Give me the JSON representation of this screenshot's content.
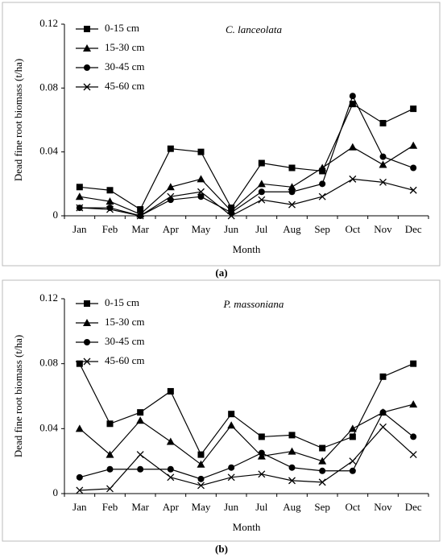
{
  "chart_data": [
    {
      "type": "line",
      "title": "C. lanceolata",
      "caption": "(a)",
      "xlabel": "Month",
      "ylabel": "Dead fine root biomass (t/ha)",
      "categories": [
        "Jan",
        "Feb",
        "Mar",
        "Apr",
        "May",
        "Jun",
        "Jul",
        "Aug",
        "Sep",
        "Oct",
        "Nov",
        "Dec"
      ],
      "ylim": [
        0,
        0.12
      ],
      "yticks": [
        0,
        0.04,
        0.08,
        0.12
      ],
      "legend": "upper left",
      "series": [
        {
          "name": "0-15 cm",
          "color": "#000000",
          "marker": "square",
          "values": [
            0.018,
            0.016,
            0.004,
            0.042,
            0.04,
            0.005,
            0.033,
            0.03,
            0.028,
            0.07,
            0.058,
            0.067
          ]
        },
        {
          "name": "15-30 cm",
          "color": "#000000",
          "marker": "triangle",
          "values": [
            0.012,
            0.009,
            0.001,
            0.018,
            0.023,
            0.003,
            0.02,
            0.018,
            0.03,
            0.043,
            0.032,
            0.044
          ]
        },
        {
          "name": "30-45 cm",
          "color": "#000000",
          "marker": "circle",
          "values": [
            0.005,
            0.005,
            0.0,
            0.01,
            0.012,
            0.002,
            0.015,
            0.015,
            0.02,
            0.075,
            0.037,
            0.03
          ]
        },
        {
          "name": "45-60 cm",
          "color": "#000000",
          "marker": "x",
          "values": [
            0.005,
            0.004,
            0.0,
            0.012,
            0.015,
            0.0,
            0.01,
            0.007,
            0.012,
            0.023,
            0.021,
            0.016
          ]
        }
      ]
    },
    {
      "type": "line",
      "title": "P. massoniana",
      "caption": "(b)",
      "xlabel": "Month",
      "ylabel": "Dead fine root biomass (t/ha)",
      "categories": [
        "Jan",
        "Feb",
        "Mar",
        "Apr",
        "May",
        "Jun",
        "Jul",
        "Aug",
        "Sep",
        "Oct",
        "Nov",
        "Dec"
      ],
      "ylim": [
        0,
        0.12
      ],
      "yticks": [
        0,
        0.04,
        0.08,
        0.12
      ],
      "legend": "upper left",
      "series": [
        {
          "name": "0-15 cm",
          "color": "#000000",
          "marker": "square",
          "values": [
            0.08,
            0.043,
            0.05,
            0.063,
            0.024,
            0.049,
            0.035,
            0.036,
            0.028,
            0.035,
            0.072,
            0.08
          ]
        },
        {
          "name": "15-30 cm",
          "color": "#000000",
          "marker": "triangle",
          "values": [
            0.04,
            0.024,
            0.045,
            0.032,
            0.018,
            0.042,
            0.023,
            0.026,
            0.02,
            0.04,
            0.05,
            0.055
          ]
        },
        {
          "name": "30-45 cm",
          "color": "#000000",
          "marker": "circle",
          "values": [
            0.01,
            0.015,
            0.015,
            0.015,
            0.009,
            0.016,
            0.025,
            0.016,
            0.014,
            0.014,
            0.05,
            0.035
          ]
        },
        {
          "name": "45-60 cm",
          "color": "#000000",
          "marker": "x",
          "values": [
            0.002,
            0.003,
            0.024,
            0.01,
            0.005,
            0.01,
            0.012,
            0.008,
            0.007,
            0.02,
            0.041,
            0.024
          ]
        }
      ]
    }
  ]
}
